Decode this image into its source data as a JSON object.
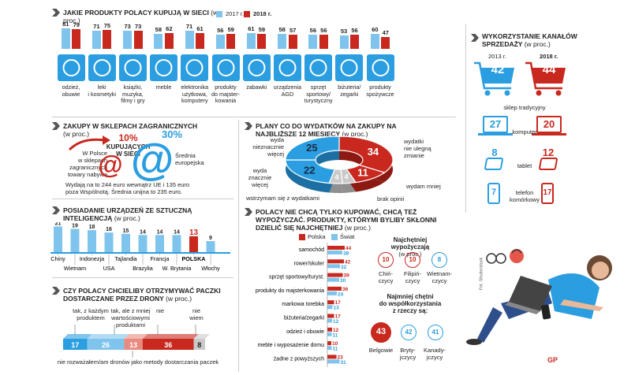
{
  "top": {
    "title": "Jakie produkty Polacy kupują w sieci",
    "subtitle": "(w proc.)",
    "legend": [
      "2017 r.",
      "2018 r."
    ],
    "chart_data": {
      "type": "bar",
      "categories": [
        "odzież, obuwie",
        "leki i kosmetyki",
        "książki, muzyka, filmy i gry",
        "meble",
        "elektronika użytkowa, komputery",
        "produkty do majsterkowania",
        "zabawki",
        "urządzenia AGD",
        "sprzęt sportowy/turystyczny",
        "biżuteria/zegarki",
        "produkty spożywcze"
      ],
      "series": [
        {
          "name": "2017 r.",
          "values": [
            81,
            71,
            73,
            58,
            71,
            56,
            61,
            58,
            56,
            53,
            60
          ]
        },
        {
          "name": "2018 r.",
          "values": [
            79,
            75,
            73,
            62,
            61,
            59,
            59,
            57,
            56,
            56,
            47
          ]
        }
      ]
    },
    "cat_lines": [
      [
        "odzież,",
        "obuwie"
      ],
      [
        "leki",
        "i kosmetyki"
      ],
      [
        "książki,",
        "muzyka,",
        "filmy i gry"
      ],
      [
        "meble"
      ],
      [
        "elektronika",
        "użytkowa,",
        "komputery"
      ],
      [
        "produkty",
        "do majster-",
        "kowania"
      ],
      [
        "zabawki"
      ],
      [
        "urządzenia",
        "AGD"
      ],
      [
        "sprzęt",
        "sportowy/",
        "turystyczny"
      ],
      [
        "biżuteria/",
        "zegarki"
      ],
      [
        "produkty",
        "spożywcze"
      ]
    ],
    "icons": [
      "hanger-icon",
      "lipstick-icon",
      "books-gamepad-icon",
      "table-icon",
      "laptop-icon",
      "tools-icon",
      "rocking-horse-icon",
      "microwave-icon",
      "bicycle-icon",
      "diamond-icon",
      "bread-icon"
    ],
    "colors": {
      "y2017": "#7fc4ec",
      "y2018": "#c8281e",
      "accent": "#2a9ee0"
    }
  },
  "channels": {
    "title": "Wykorzystanie kanałów sprzedaży",
    "subtitle": "(w proc.)",
    "years": [
      "2013 r.",
      "2018 r."
    ],
    "chart_data": {
      "type": "table",
      "rows": [
        {
          "label": "sklep tradycyjny",
          "v2013": 42,
          "v2018": 44
        },
        {
          "label": "komputer",
          "v2013": 27,
          "v2018": 20
        },
        {
          "label": "tablet",
          "v2013": 8,
          "v2018": 12
        },
        {
          "label": "telefon komórkowy",
          "v2013": 7,
          "v2018": 17
        }
      ]
    },
    "phone_lines": [
      "telefon",
      "komórkowy"
    ]
  },
  "foreign": {
    "title": "Zakupy w sklepach zagranicznych",
    "subtitle": "(w proc.)",
    "poland_lines": [
      "W Polsce",
      "w sklepach",
      "zagranicznych",
      "towary nabywa"
    ],
    "pl_value": "10%",
    "pl_lines": [
      "KUPUJĄCYCH",
      "W SIECI"
    ],
    "eu_value": "30%",
    "eu_lines": [
      "Średnia",
      "europejska"
    ],
    "note_lines": [
      "Wydają na to 244 euro wewnątrz UE i 135 euro",
      "poza Wspólnotą. Średnia unijna to 235 euro."
    ]
  },
  "plans": {
    "title": "Plany co do wydatków na zakupy na najbliższe 12 miesięcy",
    "subtitle": "(w proc.)",
    "chart_data": {
      "type": "pie",
      "labels": [
        "wydatki nie ulegną zmianie",
        "wydam mniej",
        "brak opinii",
        "wstrzymam się z wydatkami",
        "wydam znacznie więcej",
        "wydam nieznacznie więcej"
      ],
      "values": [
        34,
        11,
        4,
        4,
        22,
        25
      ]
    },
    "label_lines": {
      "nochange": [
        "wydatki",
        "nie ulegną",
        "zmianie"
      ],
      "less": "wydam mniej",
      "noop": "brak opinii",
      "hold": "wstrzymam się z wydatkami",
      "much": [
        "wyda",
        "znacznie",
        "więcej"
      ],
      "slight": [
        "wyda",
        "nieznacznie",
        "więcej"
      ]
    }
  },
  "ai": {
    "title": "Posiadanie urządzeń ze sztuczną inteligencją",
    "subtitle": "(w proc.)",
    "chart_data": {
      "type": "bar",
      "categories": [
        "Chiny",
        "Wietnam",
        "Indonezja",
        "USA",
        "Tajlandia",
        "Brazylia",
        "Francja",
        "W. Brytania",
        "POLSKA",
        "Włochy"
      ],
      "values": [
        21,
        19,
        18,
        16,
        15,
        14,
        14,
        14,
        13,
        9
      ]
    }
  },
  "rent": {
    "title": "Polacy nie chcą tylko kupować, chcą też wypożyczać. Produkty, którymi byliby skłonni dzielić się najchętniej",
    "subtitle": "(w proc.)",
    "legend": [
      "Polska",
      "Świat"
    ],
    "chart_data": {
      "type": "bar",
      "categories": [
        "samochód",
        "rower/skuter",
        "sprzęt sportowy/turyst.",
        "produkty do majsterkowania",
        "markowa torebka",
        "biżuteria/zegarki",
        "odzież i obuwie",
        "meble i wyposażenie domu",
        "żadne z powyższych"
      ],
      "series": [
        {
          "name": "Polska",
          "values": [
            44,
            42,
            39,
            36,
            17,
            17,
            12,
            10,
            23
          ]
        },
        {
          "name": "Świat",
          "values": [
            38,
            32,
            30,
            24,
            13,
            12,
            11,
            11,
            31
          ]
        }
      ]
    },
    "most_title": [
      "Najchętniej",
      "wypożyczają"
    ],
    "most_subtitle": "(w proc.)",
    "most": [
      {
        "value": 10,
        "lines": [
          "Chiń-",
          "czycy"
        ]
      },
      {
        "value": 10,
        "lines": [
          "Filipiń-",
          "czycy"
        ]
      },
      {
        "value": 8,
        "lines": [
          "Wietnam-",
          "czycy"
        ]
      }
    ],
    "share_title": [
      "Najmniej chętni",
      "do współkorzystania",
      "z rzeczy są:"
    ],
    "share": [
      {
        "value": 43,
        "lines": [
          "Belgowie"
        ]
      },
      {
        "value": 42,
        "lines": [
          "Bryty-",
          "jczycy"
        ]
      },
      {
        "value": 41,
        "lines": [
          "Kanady-",
          "jczycy"
        ]
      }
    ]
  },
  "drones": {
    "title": "Czy Polacy chcieliby otrzymywać paczki dostarczane przez drony",
    "subtitle": "(w proc.)",
    "labels": [
      [
        "tak, z każdym",
        "produktem"
      ],
      [
        "tak, ale z mniej",
        "wartościowymi",
        "produktami"
      ],
      [
        "nie"
      ],
      [
        "nie",
        "wiem"
      ]
    ],
    "chart_data": {
      "type": "bar",
      "categories": [
        "tak, z każdym produktem",
        "tak, ale z mniej wartościowymi produktami",
        "nie rozważałem/am dronów jako metody dostarczania paczek",
        "nie",
        "nie wiem"
      ],
      "values": [
        17,
        26,
        13,
        36,
        8
      ]
    },
    "footer": "nie rozważałem/am dronów jako metody dostarczania paczek"
  },
  "credit": "Fot. Shutterstock",
  "logo": "GP"
}
